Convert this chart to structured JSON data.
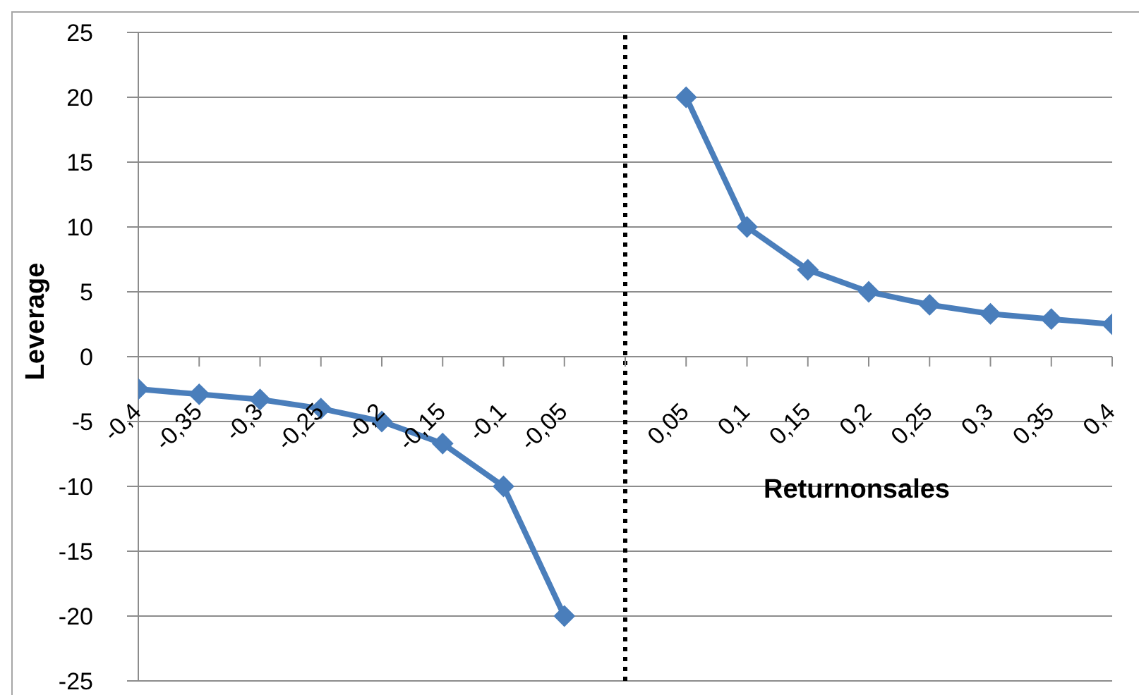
{
  "chart_data": {
    "type": "line",
    "xlabel": "Returnonsales",
    "ylabel": "Leverage",
    "x": [
      -0.4,
      -0.35,
      -0.3,
      -0.25,
      -0.2,
      -0.15,
      -0.1,
      -0.05,
      0,
      0.05,
      0.1,
      0.15,
      0.2,
      0.25,
      0.3,
      0.35,
      0.4
    ],
    "values": [
      -2.5,
      -2.9,
      -3.3,
      -4,
      -5,
      -6.7,
      -10,
      -20,
      null,
      20,
      10,
      6.7,
      5,
      4,
      3.3,
      2.9,
      2.5
    ],
    "color": "#4a7ebb",
    "xlim": [
      -0.4,
      0.4
    ],
    "xticks": [
      {
        "value": -0.4,
        "label": "-0,4"
      },
      {
        "value": -0.35,
        "label": "-0,35"
      },
      {
        "value": -0.3,
        "label": "-0,3"
      },
      {
        "value": -0.25,
        "label": "-0,25"
      },
      {
        "value": -0.2,
        "label": "-0,2"
      },
      {
        "value": -0.15,
        "label": "-0,15"
      },
      {
        "value": -0.1,
        "label": "-0,1"
      },
      {
        "value": -0.05,
        "label": "-0,05"
      },
      {
        "value": 0,
        "label": null
      },
      {
        "value": 0.05,
        "label": "0,05"
      },
      {
        "value": 0.1,
        "label": "0,1"
      },
      {
        "value": 0.15,
        "label": "0,15"
      },
      {
        "value": 0.2,
        "label": "0,2"
      },
      {
        "value": 0.25,
        "label": "0,25"
      },
      {
        "value": 0.3,
        "label": "0,3"
      },
      {
        "value": 0.35,
        "label": "0,35"
      },
      {
        "value": 0.4,
        "label": "0,4"
      }
    ],
    "ylim": [
      -25,
      25
    ],
    "yticks": [
      -25,
      -20,
      -15,
      -10,
      -5,
      0,
      5,
      10,
      15,
      20,
      25
    ],
    "grid": "y",
    "marker": "diamond",
    "line_style": "solid",
    "ref_lines": [
      {
        "axis": "x",
        "value": 0,
        "line_style": "dotted",
        "color": "#000000"
      }
    ]
  }
}
